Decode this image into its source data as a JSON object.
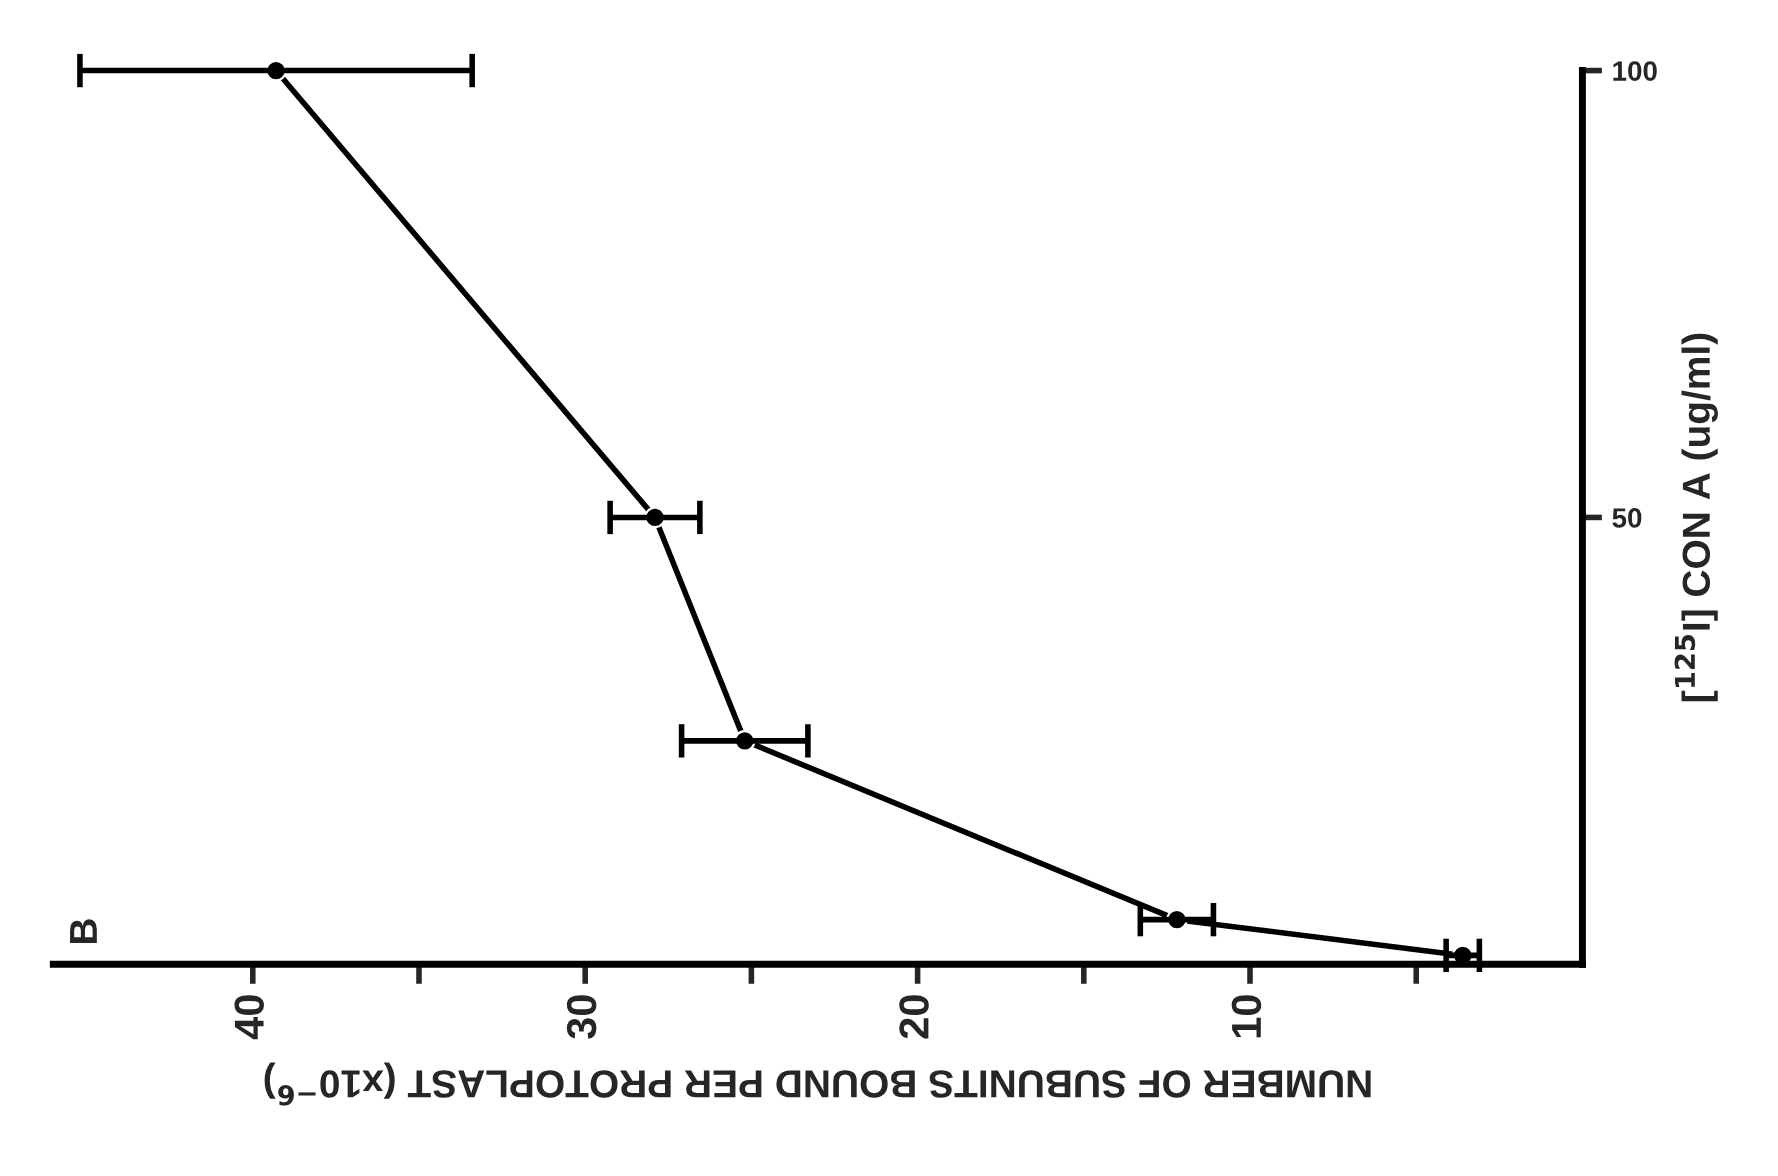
{
  "chart_data": {
    "type": "line",
    "orientation": "horizontal",
    "x": [
      1,
      5,
      25,
      50,
      100
    ],
    "values": [
      3.6,
      12.2,
      25.2,
      27.9,
      39.3
    ],
    "errors": [
      0.5,
      1.1,
      1.9,
      1.35,
      5.9
    ],
    "color": "#000000",
    "marker": "circle",
    "line_style": "solid",
    "xlabel": "NUMBER OF SUBUNITS BOUND PER PROTOPLAST (x10$^{−6}$)",
    "ylabel": "[$^{125}$I] CON A (ug/ml)",
    "xlim": [
      46,
      0
    ],
    "xticks": [
      40,
      {
        "value": 35,
        "label": null
      },
      30,
      {
        "value": 25,
        "label": null
      },
      20,
      {
        "value": 15,
        "label": null
      },
      10,
      {
        "value": 5,
        "label": null
      }
    ],
    "ylim": [
      0,
      100
    ],
    "yticks": [
      50,
      100
    ],
    "annotations": [
      "B"
    ],
    "grid": false,
    "legend": false
  }
}
